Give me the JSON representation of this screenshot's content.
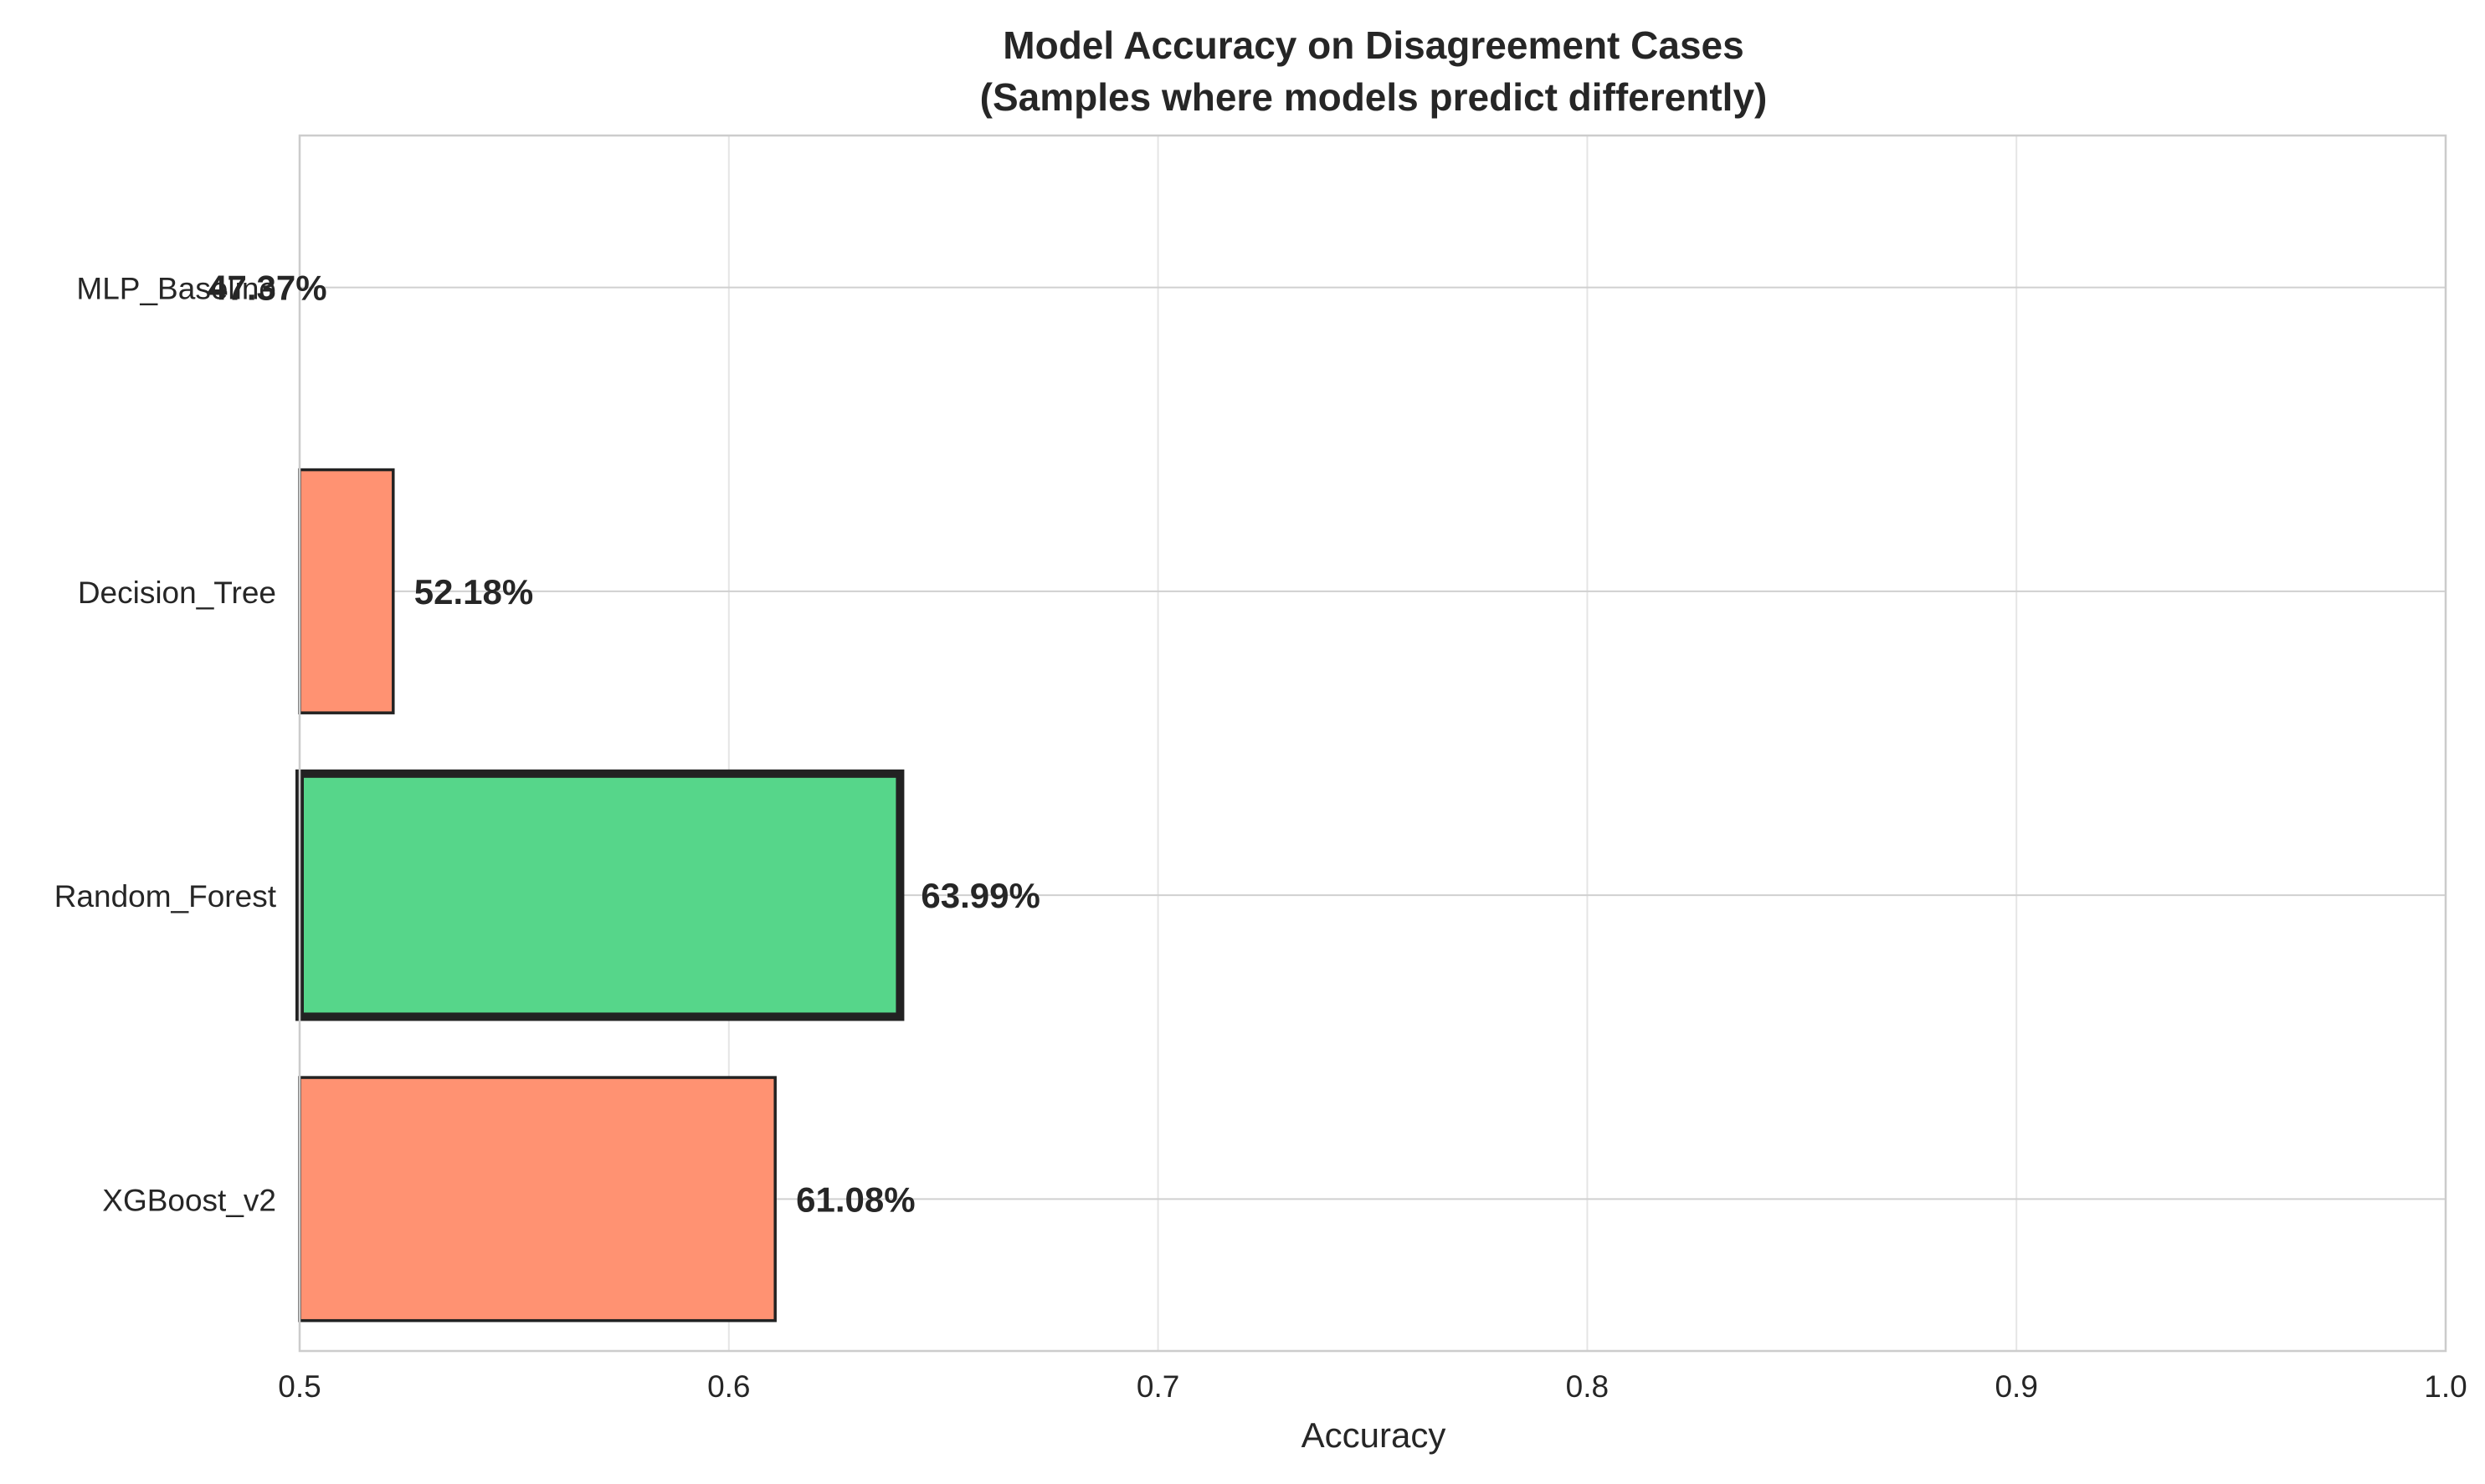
{
  "chart_data": {
    "type": "bar",
    "orientation": "horizontal",
    "title_line1": "Model Accuracy on Disagreement Cases",
    "title_line2": "(Samples where models predict differently)",
    "xlabel": "Accuracy",
    "ylabel": "",
    "xlim": [
      0.5,
      1.0
    ],
    "xticks": [
      0.5,
      0.6,
      0.7,
      0.8,
      0.9,
      1.0
    ],
    "xtick_labels": [
      "0.5",
      "0.6",
      "0.7",
      "0.8",
      "0.9",
      "1.0"
    ],
    "grid": true,
    "categories": [
      "XGBoost_v2",
      "Random_Forest",
      "Decision_Tree",
      "MLP_Baseline"
    ],
    "values": [
      0.6108,
      0.6399,
      0.5218,
      0.4737
    ],
    "value_labels": [
      "61.08%",
      "63.99%",
      "52.18%",
      "47.37%"
    ],
    "highlight_index": 1,
    "colors": {
      "default_bar": "#ff9272",
      "highlight_bar": "#56d68a",
      "bar_edge": "#222222",
      "grid": "#e5e5e5",
      "axis_spine": "#cccccc",
      "text": "#262626"
    }
  }
}
